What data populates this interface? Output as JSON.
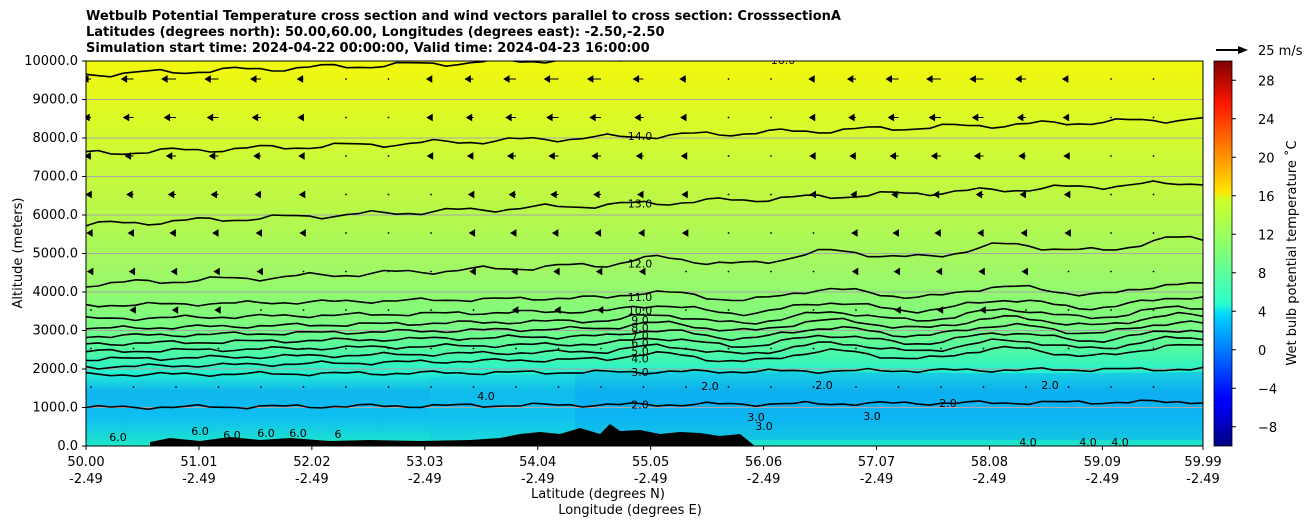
{
  "chart_data": {
    "type": "heatmap",
    "title_lines": [
      "Wetbulb Potential Temperature cross section and wind vectors parallel to cross section: CrosssectionA",
      "Latitudes (degrees north): 50.00,60.00, Longitudes (degrees east): -2.50,-2.50",
      "Simulation start time: 2024-04-22 00:00:00, Valid time: 2024-04-23 16:00:00"
    ],
    "xlabel_lines": [
      "Latitude (degrees N)",
      "Longitude (degrees E)"
    ],
    "ylabel": "Altitude (meters)",
    "x_ticks": [
      {
        "lat": "50.00",
        "lon": "-2.49"
      },
      {
        "lat": "51.01",
        "lon": "-2.49"
      },
      {
        "lat": "52.02",
        "lon": "-2.49"
      },
      {
        "lat": "53.03",
        "lon": "-2.49"
      },
      {
        "lat": "54.04",
        "lon": "-2.49"
      },
      {
        "lat": "55.05",
        "lon": "-2.49"
      },
      {
        "lat": "56.06",
        "lon": "-2.49"
      },
      {
        "lat": "57.07",
        "lon": "-2.49"
      },
      {
        "lat": "58.08",
        "lon": "-2.49"
      },
      {
        "lat": "59.09",
        "lon": "-2.49"
      },
      {
        "lat": "59.99",
        "lon": "-2.49"
      }
    ],
    "xlim": [
      50.0,
      59.99
    ],
    "y_ticks": [
      "0.0",
      "1000.0",
      "2000.0",
      "3000.0",
      "4000.0",
      "5000.0",
      "6000.0",
      "7000.0",
      "8000.0",
      "9000.0",
      "10000.0"
    ],
    "ylim": [
      0,
      10000
    ],
    "grid": "horizontal",
    "colorbar": {
      "label": "Wet bulb potential temperature ˚C",
      "ticks": [
        "−8",
        "−4",
        "0",
        "4",
        "8",
        "12",
        "16",
        "20",
        "24",
        "28"
      ],
      "range": [
        -10,
        30
      ],
      "colormap": "jet"
    },
    "quiver_key": "25 m/s",
    "contours": [
      {
        "level": "2.0",
        "altitude_at_left_m": 1000
      },
      {
        "level": "3.0",
        "altitude_at_left_m": 1850
      },
      {
        "level": "4.0",
        "altitude_at_left_m": 2050
      },
      {
        "level": "5.0",
        "altitude_at_left_m": 2250
      },
      {
        "level": "6.0",
        "altitude_at_left_m": 2450
      },
      {
        "level": "7.0",
        "altitude_at_left_m": 2650
      },
      {
        "level": "8.0",
        "altitude_at_left_m": 2850
      },
      {
        "level": "9.0",
        "altitude_at_left_m": 3050
      },
      {
        "level": "10.0",
        "altitude_at_left_m": 3300
      },
      {
        "level": "11.0",
        "altitude_at_left_m": 3650
      },
      {
        "level": "12.0",
        "altitude_at_left_m": 4200
      },
      {
        "level": "13.0",
        "altitude_at_left_m": 5750
      },
      {
        "level": "14.0",
        "altitude_at_left_m": 7600
      },
      {
        "level": "15.0",
        "altitude_at_left_m": 9650
      }
    ],
    "extra_contour_labels": [
      "6.0",
      "6.0",
      "6.0",
      "6.0",
      "6.0",
      "6",
      "4.0",
      "2.0",
      "2.0",
      "2.0",
      "2.0",
      "3.0",
      "3.0",
      "3.0",
      "4.0",
      "4.0",
      "4.0",
      "16.0"
    ]
  }
}
